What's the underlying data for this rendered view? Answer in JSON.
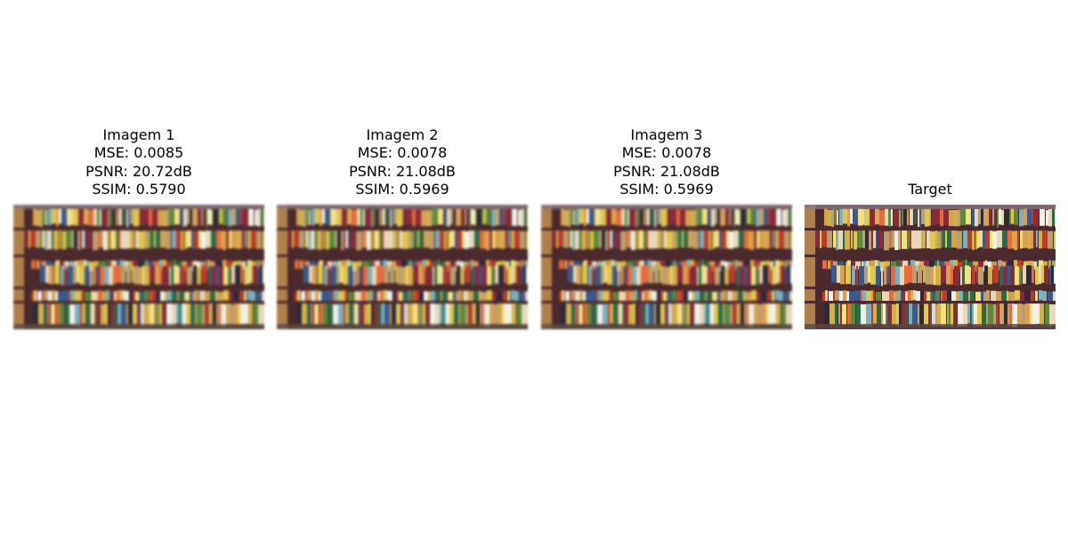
{
  "panels": [
    {
      "title": "Imagem 1",
      "mse": "MSE: 0.0085",
      "psnr": "PSNR: 20.72dB",
      "ssim": "SSIM: 0.5790",
      "blur": true
    },
    {
      "title": "Imagem 2",
      "mse": "MSE: 0.0078",
      "psnr": "PSNR: 21.08dB",
      "ssim": "SSIM: 0.5969",
      "blur": true
    },
    {
      "title": "Imagem 3",
      "mse": "MSE: 0.0078",
      "psnr": "PSNR: 21.08dB",
      "ssim": "SSIM: 0.5969",
      "blur": true
    },
    {
      "title": "Target",
      "blur": false
    }
  ],
  "image": {
    "subject": "bookshelf-photo",
    "colors": {
      "wood": "#b0804a",
      "shelf_dark": "#4a2a2c",
      "top_fade": "#8a7680",
      "bottom_fade": "#5a4a40"
    },
    "book_palette": [
      "#e8d8b8",
      "#d4b048",
      "#c03a2a",
      "#2a6a4a",
      "#e0c84a",
      "#f0f0e8",
      "#8a2a3a",
      "#3a5a8a",
      "#d8a050",
      "#f4e080",
      "#5a8a3a",
      "#b8a070",
      "#2a2a3a",
      "#e86a3a",
      "#7ab0c0"
    ]
  }
}
